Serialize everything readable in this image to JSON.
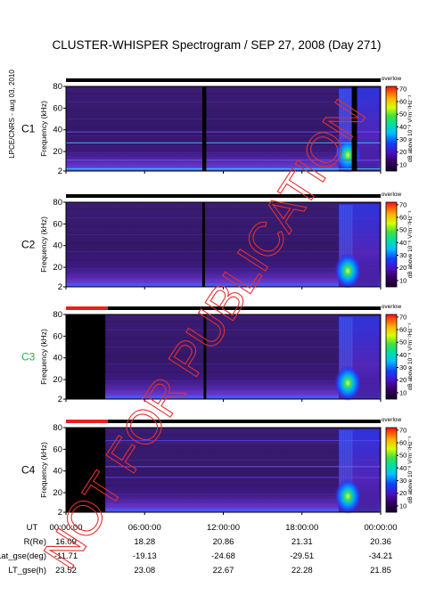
{
  "chart_data": {
    "type": "heatmap",
    "title": "CLUSTER-WHISPER Spectrogram / SEP 27, 2008 (Day 271)",
    "credit": "LPCE/CNRS - aug 03, 2010",
    "watermark": "NOT FOR PUBLICATION",
    "ylabel": "Frequency (kHz)",
    "yticks": [
      2,
      20,
      40,
      60,
      80
    ],
    "ylim": [
      2,
      80
    ],
    "colorbar": {
      "label": "dB above 10⁻⁸ V²m⁻²Hz⁻¹",
      "ticks": [
        10,
        20,
        30,
        40,
        50,
        60,
        70
      ],
      "range": [
        5,
        72
      ],
      "status_label": "overlow"
    },
    "xticks": [
      "00:00:00",
      "06:00:00",
      "12:00:00",
      "18:00:00",
      "00:00:00"
    ],
    "panels": [
      {
        "name": "C1",
        "color": "#000000",
        "data_gaps_h": [
          [
            10.4,
            10.7
          ],
          [
            21.8,
            22.2
          ]
        ]
      },
      {
        "name": "C2",
        "color": "#000000",
        "data_gaps_h": [
          [
            10.4,
            10.6
          ]
        ]
      },
      {
        "name": "C3",
        "color": "#22b14c",
        "data_gaps_h": [
          [
            0,
            3.0
          ],
          [
            10.5,
            10.7
          ]
        ]
      },
      {
        "name": "C4",
        "color": "#000000",
        "data_gaps_h": [
          [
            0,
            3.0
          ]
        ]
      }
    ],
    "ephemeris": {
      "rows": [
        {
          "label": "UT",
          "values": [
            "00:00:00",
            "06:00:00",
            "12:00:00",
            "18:00:00",
            "00:00:00"
          ]
        },
        {
          "label": "R(Re)",
          "values": [
            "16.09",
            "18.28",
            "20.86",
            "21.31",
            "20.36"
          ]
        },
        {
          "label": "Lat_gse(deg)",
          "values": [
            "-11.71",
            "-19.13",
            "-24.68",
            "-29.51",
            "-34.21"
          ]
        },
        {
          "label": "LT_gse(h)",
          "values": [
            "23.52",
            "23.08",
            "22.67",
            "22.28",
            "21.85"
          ]
        }
      ]
    }
  }
}
